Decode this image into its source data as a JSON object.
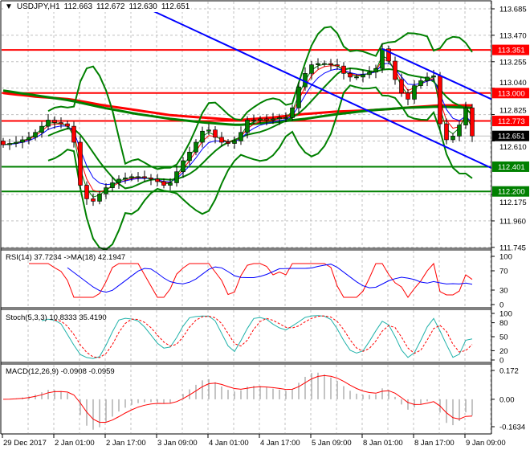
{
  "header": {
    "dropdown_icon": "triangle-down-icon",
    "symbol": "USDJPY,H1",
    "open": "112.663",
    "high": "112.672",
    "low": "112.630",
    "close": "112.651"
  },
  "chart_data": [
    {
      "type": "candlestick",
      "title": "USDJPY,H1",
      "ylim": [
        111.745,
        113.685
      ],
      "y_ticks": [
        "113.685",
        "113.470",
        "113.255",
        "113.040",
        "112.825",
        "112.610",
        "112.175",
        "111.960",
        "111.745"
      ],
      "x_ticks": [
        "29 Dec 2017",
        "2 Jan 01:00",
        "2 Jan 17:00",
        "3 Jan 09:00",
        "4 Jan 01:00",
        "4 Jan 17:00",
        "5 Jan 09:00",
        "8 Jan 01:00",
        "8 Jan 17:00",
        "9 Jan 09:00"
      ],
      "grid": true,
      "closes": [
        112.58,
        112.59,
        112.6,
        112.62,
        112.64,
        112.68,
        112.73,
        112.78,
        112.76,
        112.75,
        112.73,
        112.6,
        112.25,
        112.14,
        112.12,
        112.18,
        112.23,
        112.27,
        112.3,
        112.31,
        112.32,
        112.32,
        112.31,
        112.3,
        112.28,
        112.25,
        112.27,
        112.36,
        112.45,
        112.52,
        112.6,
        112.69,
        112.7,
        112.64,
        112.6,
        112.59,
        112.61,
        112.68,
        112.78,
        112.78,
        112.79,
        112.78,
        112.79,
        112.8,
        112.8,
        112.88,
        113.05,
        113.16,
        113.23,
        113.24,
        113.24,
        113.23,
        113.22,
        113.16,
        113.13,
        113.13,
        113.15,
        113.17,
        113.2,
        113.36,
        113.26,
        113.11,
        113.0,
        112.95,
        113.06,
        113.1,
        113.13,
        113.14,
        112.75,
        112.62,
        112.65,
        112.74,
        112.88,
        112.651
      ],
      "long_ma_red": [
        113.0,
        112.97,
        112.95,
        112.9,
        112.86,
        112.82,
        112.8,
        112.78,
        112.8,
        112.83,
        112.85,
        112.86,
        112.88,
        112.9,
        112.9
      ],
      "long_ma_green": [
        113.02,
        112.98,
        112.94,
        112.88,
        112.83,
        112.79,
        112.76,
        112.74,
        112.76,
        112.79,
        112.83,
        112.86,
        112.88,
        112.89,
        112.88
      ],
      "levels": [
        {
          "price": 113.351,
          "label": "113.351",
          "color": "#ff0000"
        },
        {
          "price": 113.0,
          "label": "113.000",
          "color": "#ff0000"
        },
        {
          "price": 112.773,
          "label": "112.773",
          "color": "#ff0000"
        },
        {
          "price": 112.401,
          "label": "112.401",
          "color": "#008000"
        },
        {
          "price": 112.2,
          "label": "112.200",
          "color": "#008000"
        }
      ],
      "current_price": {
        "price": 112.651,
        "label": "112.651"
      },
      "trendlines": [
        {
          "from_bar": 22.6,
          "from_price": 113.685,
          "to_bar": 76,
          "to_price": 112.39,
          "color": "#0000ff"
        },
        {
          "from_bar": 59,
          "from_price": 113.36,
          "to_bar": 76,
          "to_price": 112.95,
          "color": "#0000ff"
        }
      ]
    },
    {
      "type": "line",
      "title": "RSI(14) 37.7234  ->MA(18) 42.1947",
      "ylim": [
        0,
        100
      ],
      "y_ticks": [
        "100",
        "70",
        "30",
        "0"
      ],
      "series": [
        {
          "name": "RSI(14)",
          "color": "#ff0000"
        },
        {
          "name": "MA(18)",
          "color": "#0000ff"
        }
      ]
    },
    {
      "type": "line",
      "title": "Stoch(5,3,3) 10.8333 35.4190",
      "ylim": [
        0,
        100
      ],
      "y_ticks": [
        "100",
        "80",
        "50",
        "20",
        "0"
      ],
      "series": [
        {
          "name": "%K",
          "color": "#20b2aa"
        },
        {
          "name": "%D",
          "color": "#ff0000"
        }
      ]
    },
    {
      "type": "line",
      "title": "MACD(12,26,9) -0.0908 -0.0959",
      "ylim": [
        -0.1634,
        0.172
      ],
      "y_ticks": [
        "0.172",
        "0.00",
        "-0.1634"
      ],
      "series": [
        {
          "name": "MACD",
          "color": "#c0c0c0"
        },
        {
          "name": "Signal",
          "color": "#ff0000"
        }
      ]
    }
  ]
}
